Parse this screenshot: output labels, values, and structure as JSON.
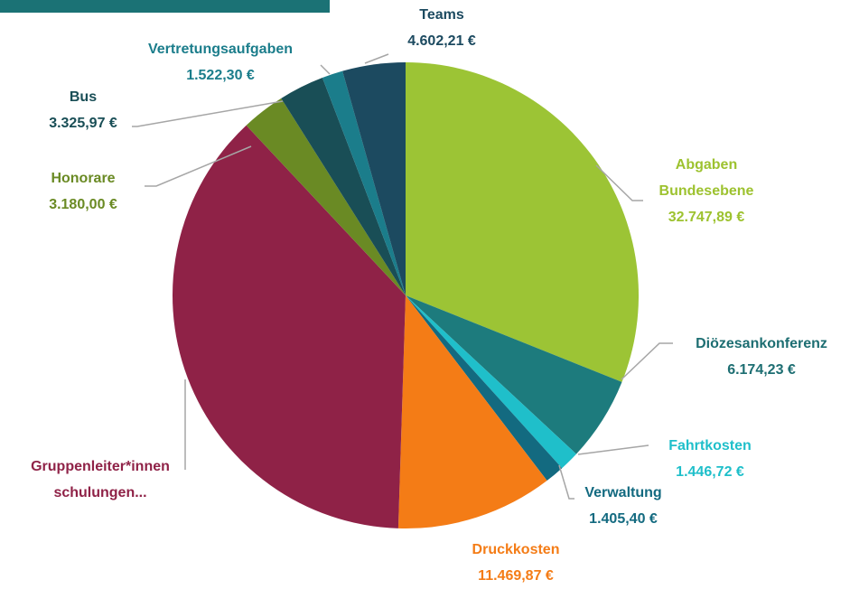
{
  "chart_data": {
    "type": "pie",
    "categories": [
      "Abgaben Bundesebene",
      "Diözesankonferenz",
      "Fahrtkosten",
      "Verwaltung",
      "Druckkosten",
      "Gruppenleiter*innen schulungen...",
      "Honorare",
      "Bus",
      "Vertretungsaufgaben",
      "Teams"
    ],
    "values": [
      32747.89,
      6174.23,
      1446.72,
      1405.4,
      11469.87,
      39560,
      3180.0,
      3325.97,
      1522.3,
      4602.21
    ],
    "value_labels": [
      "32.747,89 €",
      "6.174,23 €",
      "1.446,72 €",
      "1.405,40 €",
      "11.469,87 €",
      null,
      "3.180,00 €",
      "3.325,97 €",
      "1.522,30 €",
      "4.602,21 €"
    ],
    "colors": [
      "#9cc435",
      "#1d7b7d",
      "#1fbfca",
      "#136a80",
      "#f47c16",
      "#8f2247",
      "#6a8a24",
      "#194e56",
      "#1b7d8b",
      "#1c4a60"
    ]
  }
}
